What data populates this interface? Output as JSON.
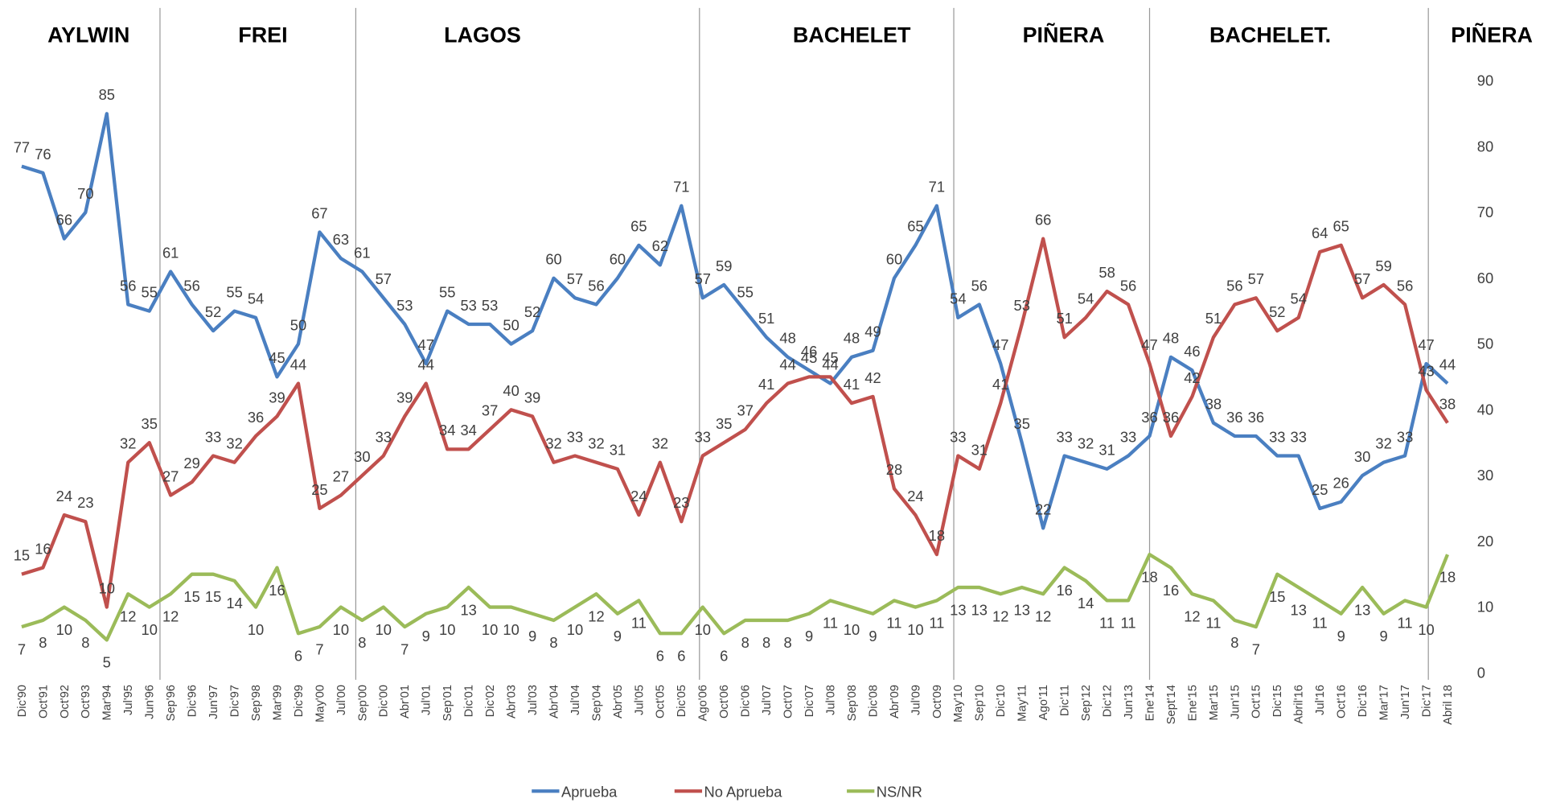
{
  "chart_data": {
    "type": "line",
    "eras": [
      "AYLWIN",
      "FREI",
      "LAGOS",
      "BACHELET",
      "PIÑERA",
      "BACHELET.",
      "PIÑERA"
    ],
    "categories": [
      "Dic'90",
      "Oct'91",
      "Oct'92",
      "Oct'93",
      "Mar'94",
      "Jul'95",
      "Jun'96",
      "Sep'96",
      "Dic'96",
      "Jun'97",
      "Dic'97",
      "Sep'98",
      "Mar'99",
      "Dic'99",
      "May'00",
      "Jul'00",
      "Sep'00",
      "Dic'00",
      "Abr'01",
      "Jul'01",
      "Sep'01",
      "Dic'01",
      "Dic'02",
      "Abr'03",
      "Jul'03",
      "Abr'04",
      "Jul'04",
      "Sep'04",
      "Abr'05",
      "Jul'05",
      "Oct'05",
      "Dic'05",
      "Ago'06",
      "Oct'06",
      "Dic'06",
      "Jul'07",
      "Oct'07",
      "Dic'07",
      "Jul'08",
      "Sep'08",
      "Dic'08",
      "Abr'09",
      "Jul'09",
      "Oct'09",
      "May'10",
      "Sep'10",
      "Dic'10",
      "May'11",
      "Ago'11",
      "Dic'11",
      "Sep'12",
      "Dic'12",
      "Jun'13",
      "Ene'14",
      "Sept'14",
      "Ene'15",
      "Mar'15",
      "Jun'15",
      "Oct'15",
      "Dic'15",
      "Abril'16",
      "Jul'16",
      "Oct'16",
      "Dic'16",
      "Mar'17",
      "Jun'17",
      "Dic'17",
      "Abril 18"
    ],
    "series": [
      {
        "name": "Aprueba",
        "color": "#4a7fc1",
        "values": [
          77,
          76,
          66,
          70,
          85,
          56,
          55,
          61,
          56,
          52,
          55,
          54,
          45,
          50,
          67,
          63,
          61,
          57,
          53,
          47,
          55,
          53,
          53,
          50,
          52,
          60,
          57,
          56,
          60,
          65,
          62,
          71,
          57,
          59,
          55,
          51,
          48,
          46,
          44,
          48,
          49,
          60,
          65,
          71,
          54,
          56,
          47,
          35,
          22,
          33,
          32,
          31,
          33,
          36,
          48,
          46,
          38,
          36,
          36,
          33,
          33,
          25,
          26,
          30,
          32,
          33,
          47,
          44
        ]
      },
      {
        "name": "No Aprueba",
        "color": "#c0504d",
        "values": [
          15,
          16,
          24,
          23,
          10,
          32,
          35,
          27,
          29,
          33,
          32,
          36,
          39,
          44,
          25,
          27,
          30,
          33,
          39,
          44,
          34,
          34,
          37,
          40,
          39,
          32,
          33,
          32,
          31,
          24,
          32,
          23,
          33,
          35,
          37,
          41,
          44,
          45,
          45,
          41,
          42,
          28,
          24,
          18,
          33,
          31,
          41,
          53,
          66,
          51,
          54,
          58,
          56,
          47,
          36,
          42,
          51,
          56,
          57,
          52,
          54,
          64,
          65,
          57,
          59,
          56,
          43,
          38
        ]
      },
      {
        "name": "NS/NR",
        "color": "#9bbb59",
        "values": [
          7,
          8,
          10,
          8,
          5,
          12,
          10,
          12,
          15,
          15,
          14,
          10,
          16,
          6,
          7,
          10,
          8,
          10,
          7,
          9,
          10,
          13,
          10,
          10,
          9,
          8,
          10,
          12,
          9,
          11,
          6,
          6,
          10,
          6,
          8,
          8,
          8,
          9,
          11,
          10,
          9,
          11,
          10,
          11,
          13,
          13,
          12,
          13,
          12,
          16,
          14,
          11,
          11,
          18,
          16,
          12,
          11,
          8,
          7,
          15,
          13,
          11,
          9,
          13,
          9,
          11,
          10,
          18
        ]
      }
    ],
    "ylim": [
      0,
      90
    ],
    "yticks": [
      0,
      10,
      20,
      30,
      40,
      50,
      60,
      70,
      80,
      90
    ],
    "grid": false,
    "legend": "bottom"
  }
}
